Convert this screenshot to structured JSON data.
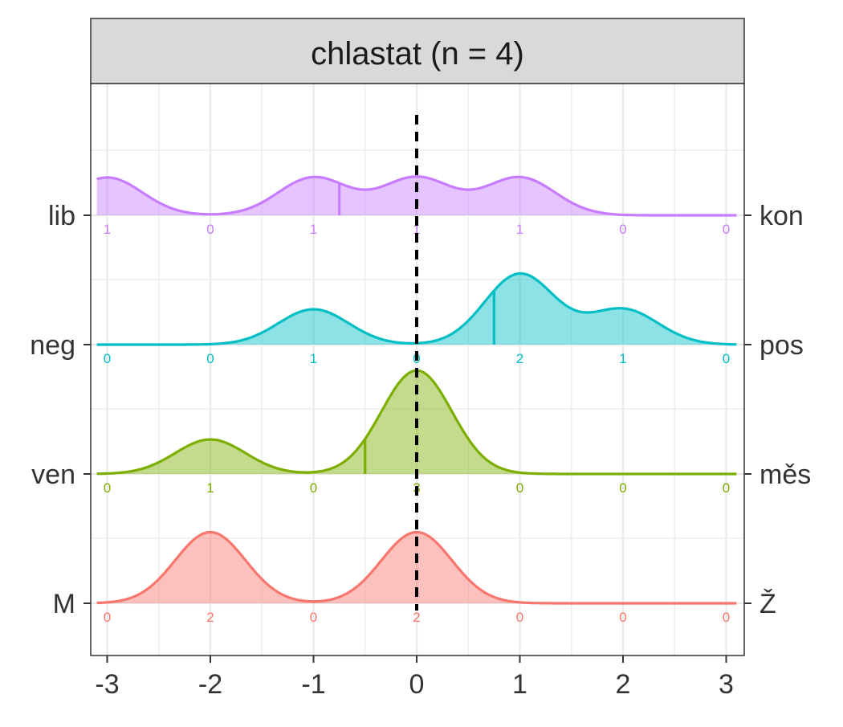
{
  "chart_data": {
    "type": "ridgeline",
    "title": "chlastat (n = 4)",
    "x_ticks": [
      "-3",
      "-2",
      "-1",
      "0",
      "1",
      "2",
      "3"
    ],
    "x_values": [
      -3,
      -2,
      -1,
      0,
      1,
      2,
      3
    ],
    "xlim": [
      -3,
      3
    ],
    "reference_line_x": 0,
    "grid": true,
    "series": [
      {
        "left_label": "M",
        "right_label": "Ž",
        "color": "#F8766D",
        "counts": [
          0,
          2,
          0,
          2,
          0,
          0,
          0
        ],
        "mean": -1,
        "density_peak_height": 0.55
      },
      {
        "left_label": "ven",
        "right_label": "měs",
        "color": "#7CAE00",
        "counts": [
          0,
          1,
          0,
          3,
          0,
          0,
          0
        ],
        "mean": -0.5,
        "density_peak_height": 0.8
      },
      {
        "left_label": "neg",
        "right_label": "pos",
        "color": "#00BFC4",
        "counts": [
          0,
          0,
          1,
          0,
          2,
          1,
          0
        ],
        "mean": 0.75,
        "density_peak_height": 0.55
      },
      {
        "left_label": "lib",
        "right_label": "kon",
        "color": "#C77CFF",
        "counts": [
          1,
          0,
          1,
          1,
          1,
          0,
          0
        ],
        "mean": -0.75,
        "density_peak_height": 0.3
      }
    ]
  }
}
